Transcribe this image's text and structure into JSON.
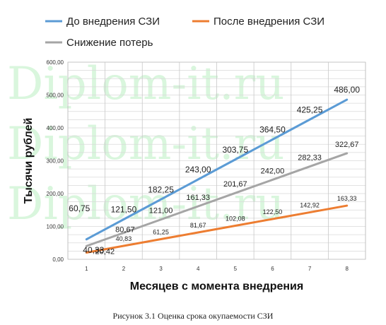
{
  "watermark": "Diplom-it.ru",
  "caption": "Рисунок 3.1 Оценка срока окупаемости СЗИ",
  "chart_data": {
    "type": "line",
    "xlabel": "Месяцев с момента внедрения",
    "ylabel": "Тысячи рублей",
    "x": [
      1,
      2,
      3,
      4,
      5,
      6,
      7,
      8
    ],
    "ylim": [
      0,
      600
    ],
    "yticks": [
      "0,00",
      "100,00",
      "200,00",
      "300,00",
      "400,00",
      "500,00",
      "600,00"
    ],
    "grid": true,
    "legend_position": "top",
    "series": [
      {
        "name": "До внедрения СЗИ",
        "color": "#5b9bd5",
        "values": [
          60.75,
          121.5,
          182.25,
          243.0,
          303.75,
          364.5,
          425.25,
          486.0
        ],
        "labels": [
          "60,75",
          "121,50",
          "182,25",
          "243,00",
          "303,75",
          "364,50",
          "425,25",
          "486,00"
        ]
      },
      {
        "name": "После внедрения СЗИ",
        "color": "#ed7d31",
        "values": [
          20.42,
          40.83,
          61.25,
          81.67,
          102.08,
          122.5,
          142.92,
          163.33
        ],
        "labels": [
          "20,42",
          "40,83",
          "61,25",
          "81,67",
          "102,08",
          "122,50",
          "142,92",
          "163,33"
        ]
      },
      {
        "name": "Снижение потерь",
        "color": "#a5a5a5",
        "values": [
          40.33,
          80.67,
          121.0,
          161.33,
          201.67,
          242.0,
          282.33,
          322.67
        ],
        "labels": [
          "40,33",
          "80,67",
          "121,00",
          "161,33",
          "201,67",
          "242,00",
          "282,33",
          "322,67"
        ]
      }
    ]
  }
}
